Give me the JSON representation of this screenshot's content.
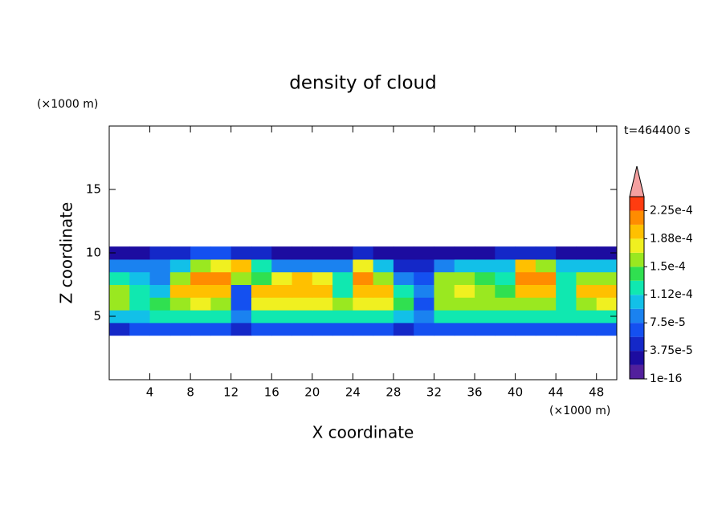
{
  "chart_data": {
    "type": "contour",
    "title": "density of cloud",
    "x_label": "X coordinate",
    "y_label": "Z coordinate",
    "x_unit": "(×1000 m)",
    "y_unit": "(×1000 m)",
    "annotation": "t=464400 s",
    "xlim": [
      0,
      50
    ],
    "ylim": [
      0,
      20
    ],
    "xticks": [
      4,
      8,
      12,
      16,
      20,
      24,
      28,
      32,
      36,
      40,
      44,
      48
    ],
    "yticks": [
      5,
      10,
      15
    ],
    "x": [
      1,
      3,
      5,
      7,
      9,
      11,
      13,
      15,
      17,
      19,
      21,
      23,
      25,
      27,
      29,
      31,
      33,
      35,
      37,
      39,
      41,
      43,
      45,
      47,
      49
    ],
    "z": [
      4,
      5,
      6,
      7,
      8,
      9,
      10
    ],
    "values": [
      [
        5e-05,
        6e-05,
        6e-05,
        6e-05,
        6e-05,
        6e-05,
        4e-05,
        6e-05,
        6e-05,
        6e-05,
        6e-05,
        6e-05,
        6e-05,
        6e-05,
        5e-05,
        6e-05,
        6e-05,
        6e-05,
        6e-05,
        6e-05,
        6e-05,
        6e-05,
        6e-05,
        6e-05,
        6e-05
      ],
      [
        0.00011,
        0.00011,
        0.00012,
        0.00012,
        0.00012,
        0.00012,
        8e-05,
        0.00013,
        0.00013,
        0.00013,
        0.00013,
        0.00012,
        0.00012,
        0.00012,
        0.0001,
        9e-05,
        0.00012,
        0.00012,
        0.00013,
        0.00012,
        0.00012,
        0.00012,
        0.00012,
        0.00012,
        0.00012
      ],
      [
        0.00015,
        0.00013,
        0.00014,
        0.00016,
        0.00017,
        0.00016,
        7e-05,
        0.00018,
        0.00018,
        0.00018,
        0.00017,
        0.00016,
        0.00017,
        0.00017,
        0.00014,
        6e-05,
        0.00015,
        0.00016,
        0.00016,
        0.00015,
        0.00016,
        0.00016,
        0.00013,
        0.00016,
        0.00017
      ],
      [
        0.00016,
        0.00012,
        0.00011,
        0.00019,
        0.0002,
        0.00019,
        6e-05,
        0.0002,
        0.0002,
        0.0002,
        0.0002,
        0.00012,
        0.0002,
        0.0002,
        0.00012,
        8e-05,
        0.00016,
        0.00017,
        0.00016,
        0.00014,
        0.0002,
        0.0002,
        0.00013,
        0.00019,
        0.0002
      ],
      [
        0.00012,
        0.0001,
        9e-05,
        0.00015,
        0.00021,
        0.00022,
        0.00016,
        0.00014,
        0.00018,
        0.00019,
        0.00017,
        0.00012,
        0.00021,
        0.00016,
        8e-05,
        6e-05,
        0.00015,
        0.00016,
        0.00014,
        0.00013,
        0.00022,
        0.00022,
        0.00012,
        0.00016,
        0.00015
      ],
      [
        9e-05,
        9e-05,
        9e-05,
        0.00011,
        0.00016,
        0.00018,
        0.00019,
        0.00013,
        9e-05,
        9e-05,
        9e-05,
        8e-05,
        0.00017,
        0.0001,
        5e-05,
        5e-05,
        9e-05,
        0.0001,
        0.0001,
        0.00011,
        0.00019,
        0.00016,
        0.0001,
        0.0001,
        0.0001
      ],
      [
        2e-05,
        3e-05,
        4e-05,
        5e-05,
        6e-05,
        6e-05,
        5e-05,
        4e-05,
        3e-05,
        3e-05,
        3e-05,
        3e-05,
        5e-05,
        3e-05,
        2e-05,
        2e-05,
        3e-05,
        3e-05,
        3e-05,
        4e-05,
        5e-05,
        4e-05,
        3e-05,
        3e-05,
        2e-05
      ]
    ],
    "levels": [
      1e-16,
      1.875e-05,
      3.75e-05,
      5.625e-05,
      7.5e-05,
      9.375e-05,
      0.0001125,
      0.00013125,
      0.00015,
      0.00016875,
      0.0001875,
      0.00020625,
      0.000225,
      0.00024375
    ],
    "colors": [
      "#52209c",
      "#1c0ca0",
      "#1428c8",
      "#1450f0",
      "#1a82f0",
      "#12c0e8",
      "#10e8b0",
      "#30e050",
      "#9ae820",
      "#f0f020",
      "#ffc000",
      "#ff8c00",
      "#ff3c10"
    ],
    "extend_color": "#f4a0a0",
    "colorbar_ticks": [
      {
        "value": 1e-16,
        "label": "1e-16"
      },
      {
        "value": 3.75e-05,
        "label": "3.75e-5"
      },
      {
        "value": 7.5e-05,
        "label": "7.5e-5"
      },
      {
        "value": 0.0001125,
        "label": "1.12e-4"
      },
      {
        "value": 0.00015,
        "label": "1.5e-4"
      },
      {
        "value": 0.0001875,
        "label": "1.88e-4"
      },
      {
        "value": 0.000225,
        "label": "2.25e-4"
      }
    ]
  }
}
